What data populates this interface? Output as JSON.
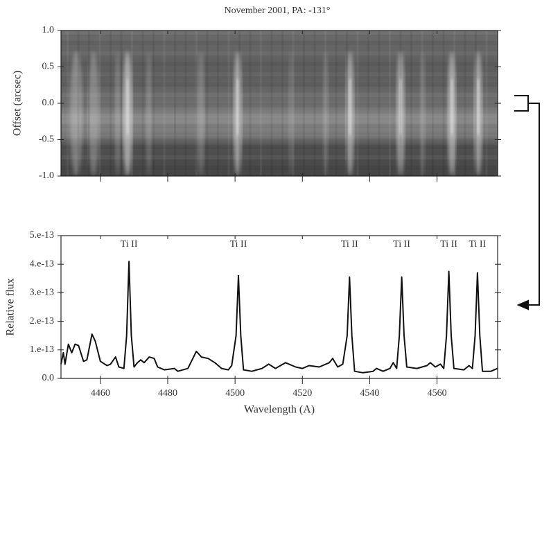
{
  "chart_data": [
    {
      "type": "image",
      "title": "November 2001, PA: -131°",
      "ylabel": "Offset (arcsec)",
      "ylim": [
        -1,
        1
      ],
      "yticks": [
        {
          "value": 1,
          "label": "1.0"
        },
        {
          "value": 0.5,
          "label": "0.5"
        },
        {
          "value": 0,
          "label": "0.0"
        },
        {
          "value": -0.5,
          "label": "-0.5"
        },
        {
          "value": -1,
          "label": "-1.0"
        }
      ],
      "xlim": [
        4448.3,
        4578
      ],
      "xticks": [
        4460,
        4480,
        4500,
        4520,
        4540,
        4560
      ]
    },
    {
      "type": "line",
      "xlabel": "Wavelength (A)",
      "ylabel": "Relative flux",
      "xlim": [
        4448.3,
        4578
      ],
      "xticks": [
        4460,
        4480,
        4500,
        4520,
        4540,
        4560
      ],
      "ylim": [
        0,
        5e-13
      ],
      "yticks": [
        {
          "value": 0,
          "label": "0.0"
        },
        {
          "value": 1e-13,
          "label": "1.e-13"
        },
        {
          "value": 2e-13,
          "label": "2.e-13"
        },
        {
          "value": 3e-13,
          "label": "3.e-13"
        },
        {
          "value": 4e-13,
          "label": "4.e-13"
        },
        {
          "value": 5e-13,
          "label": "5.e-13"
        }
      ],
      "color": "#111111",
      "annotations": [
        {
          "text": "Ti II",
          "x": 4468.5
        },
        {
          "text": "Ti II",
          "x": 4501
        },
        {
          "text": "Ti II",
          "x": 4534
        },
        {
          "text": "Ti II",
          "x": 4549.5
        },
        {
          "text": "Ti II",
          "x": 4563.5
        },
        {
          "text": "Ti II",
          "x": 4572
        }
      ],
      "x": [
        4448.3,
        4449,
        4449.5,
        4450.5,
        4451.5,
        4452.5,
        4453.5,
        4455,
        4456,
        4457.5,
        4458.5,
        4460,
        4462,
        4463,
        4464.5,
        4465.5,
        4467,
        4467.8,
        4468.5,
        4469.2,
        4470,
        4471,
        4472,
        4473,
        4474.5,
        4476,
        4477,
        4479,
        4482,
        4483,
        4486,
        4488.5,
        4490,
        4492,
        4494,
        4496,
        4498,
        4499,
        4500.3,
        4501,
        4501.7,
        4502.5,
        4505,
        4508,
        4510,
        4512,
        4515,
        4518,
        4520,
        4522,
        4525,
        4528,
        4529,
        4530.5,
        4532,
        4533.3,
        4534,
        4534.7,
        4535.5,
        4538,
        4541,
        4542,
        4544,
        4546,
        4547,
        4548,
        4548.8,
        4549.5,
        4550.2,
        4551,
        4554,
        4557,
        4558,
        4559.5,
        4561,
        4562,
        4562.8,
        4563.5,
        4564.2,
        4565,
        4568,
        4569.5,
        4570.5,
        4571.3,
        4572,
        4572.7,
        4573.5,
        4576,
        4578
      ],
      "values": [
        5e-14,
        9e-14,
        5e-14,
        1.2e-13,
        9e-14,
        1.2e-13,
        1.15e-13,
        6e-14,
        6.5e-14,
        1.55e-13,
        1.3e-13,
        6e-14,
        4.5e-14,
        5e-14,
        7.5e-14,
        4e-14,
        3.5e-14,
        1.5e-13,
        4.1e-13,
        1.5e-13,
        4e-14,
        5.5e-14,
        6.5e-14,
        5.5e-14,
        7.5e-14,
        7e-14,
        4e-14,
        3e-14,
        3.5e-14,
        2.5e-14,
        3.5e-14,
        9.5e-14,
        7.5e-14,
        7e-14,
        5.5e-14,
        3.5e-14,
        3e-14,
        4.5e-14,
        1.5e-13,
        3.6e-13,
        1.5e-13,
        3e-14,
        2.5e-14,
        3.5e-14,
        5e-14,
        3.5e-14,
        5.5e-14,
        4e-14,
        3.5e-14,
        4.5e-14,
        4e-14,
        5.5e-14,
        7e-14,
        4e-14,
        5e-14,
        1.5e-13,
        3.55e-13,
        1.5e-13,
        2.5e-14,
        2e-14,
        2.5e-14,
        3.5e-14,
        2.5e-14,
        3.5e-14,
        5.5e-14,
        3.5e-14,
        1.5e-13,
        3.55e-13,
        1.5e-13,
        4e-14,
        3.5e-14,
        4.5e-14,
        5.5e-14,
        4e-14,
        5e-14,
        3.5e-14,
        1.5e-13,
        3.75e-13,
        1.5e-13,
        3.5e-14,
        3e-14,
        4.5e-14,
        3.5e-14,
        1.5e-13,
        3.7e-13,
        1.5e-13,
        2.5e-14,
        2.5e-14,
        3.5e-14
      ]
    }
  ]
}
